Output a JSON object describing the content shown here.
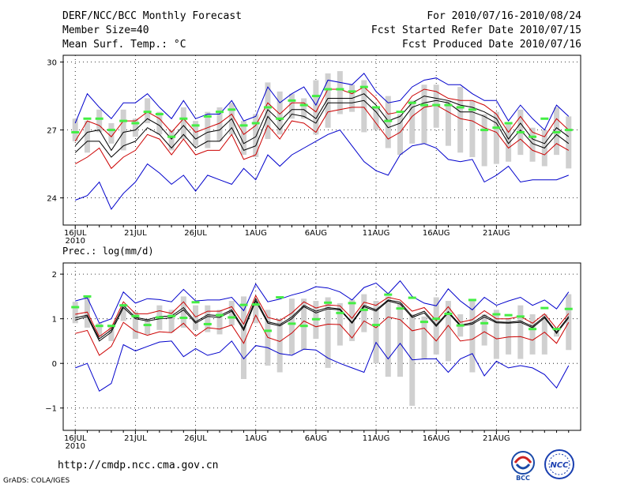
{
  "header": {
    "title": "DERF/NCC/BCC Monthly Forecast",
    "member_size": "Member Size=40",
    "variable": "Mean Surf. Temp.: °C",
    "forecast_period": "For 2010/07/16-2010/08/24",
    "start_date": "Fcst Started Refer Date 2010/07/15",
    "produced_date": "Fcst Produced Date 2010/07/16"
  },
  "footer": {
    "url": "http://cmdp.ncc.cma.gov.cn",
    "credit": "GrADS: COLA/IGES",
    "logo_bcc": "BCC",
    "logo_ncc": "NCC"
  },
  "colors": {
    "ens_range": "#0000cc",
    "spread": "#cc0000",
    "mean": "#000000",
    "box": "#d0d0d0",
    "marker": "#44ee44"
  },
  "chart_data": [
    {
      "type": "line",
      "title": "Mean Surf. Temp.: °C",
      "x_tick_labels": [
        "16JUL",
        "21JUL",
        "26JUL",
        "1AUG",
        "6AUG",
        "11AUG",
        "16AUG",
        "21AUG"
      ],
      "x_year_label": "2010",
      "ylim": [
        22.8,
        30.3
      ],
      "yticks": [
        24,
        27,
        30
      ],
      "ytick_labels": [
        "24",
        "27",
        "30"
      ],
      "grid": true,
      "series": [
        {
          "name": "max",
          "values": [
            27.3,
            28.6,
            28.0,
            27.5,
            28.2,
            28.2,
            28.6,
            28.0,
            27.5,
            28.3,
            27.5,
            27.7,
            27.7,
            28.3,
            27.4,
            27.6,
            28.9,
            28.2,
            28.6,
            28.9,
            28.1,
            29.2,
            29.1,
            29.0,
            29.5,
            28.7,
            28.2,
            28.3,
            28.9,
            29.2,
            29.3,
            29.0,
            29.0,
            28.6,
            28.3,
            28.3,
            27.4,
            28.1,
            27.5,
            27.0,
            28.1,
            27.6
          ]
        },
        {
          "name": "upper",
          "values": [
            26.5,
            27.4,
            27.2,
            26.7,
            27.4,
            27.4,
            27.8,
            27.5,
            26.9,
            27.5,
            26.9,
            27.1,
            27.3,
            27.7,
            26.8,
            27.2,
            28.2,
            27.7,
            28.2,
            28.2,
            27.8,
            28.8,
            28.8,
            28.6,
            28.9,
            28.4,
            27.7,
            27.8,
            28.5,
            28.8,
            28.7,
            28.4,
            28.3,
            28.3,
            28.1,
            27.7,
            26.9,
            27.6,
            26.9,
            26.7,
            27.5,
            27.0
          ]
        },
        {
          "name": "mean_high",
          "values": [
            26.3,
            26.9,
            27.0,
            26.1,
            26.9,
            27.0,
            27.5,
            27.2,
            26.6,
            27.2,
            26.6,
            26.9,
            27.0,
            27.5,
            26.4,
            26.7,
            27.9,
            27.4,
            27.9,
            27.9,
            27.5,
            28.4,
            28.4,
            28.4,
            28.6,
            28.1,
            27.4,
            27.6,
            28.2,
            28.5,
            28.4,
            28.3,
            28.1,
            28.0,
            27.8,
            27.5,
            26.6,
            27.3,
            26.6,
            26.4,
            27.1,
            26.7
          ]
        },
        {
          "name": "mean",
          "values": [
            26.0,
            26.5,
            26.5,
            25.8,
            26.3,
            26.5,
            27.1,
            26.8,
            26.2,
            26.8,
            26.2,
            26.5,
            26.5,
            27.1,
            26.1,
            26.3,
            27.6,
            27.0,
            27.7,
            27.6,
            27.3,
            28.2,
            28.2,
            28.2,
            28.3,
            27.8,
            27.1,
            27.3,
            28.0,
            28.2,
            28.3,
            28.2,
            27.8,
            27.8,
            27.6,
            27.3,
            26.4,
            27.0,
            26.4,
            26.2,
            26.8,
            26.4
          ]
        },
        {
          "name": "lower",
          "values": [
            25.5,
            25.8,
            26.2,
            25.3,
            25.8,
            26.1,
            26.8,
            26.6,
            25.9,
            26.6,
            25.9,
            26.1,
            26.1,
            26.8,
            25.7,
            25.9,
            27.2,
            26.6,
            27.4,
            27.3,
            26.9,
            27.8,
            27.9,
            28.0,
            28.0,
            27.3,
            26.6,
            26.9,
            27.6,
            28.0,
            28.1,
            27.8,
            27.5,
            27.4,
            27.1,
            26.9,
            26.2,
            26.6,
            26.1,
            25.9,
            26.4,
            26.1
          ]
        },
        {
          "name": "min",
          "values": [
            23.9,
            24.1,
            24.7,
            23.5,
            24.2,
            24.7,
            25.5,
            25.1,
            24.6,
            25.0,
            24.3,
            25.0,
            24.8,
            24.6,
            25.3,
            24.8,
            25.9,
            25.4,
            25.9,
            26.2,
            26.5,
            26.8,
            27.0,
            26.3,
            25.6,
            25.2,
            25.0,
            25.9,
            26.3,
            26.4,
            26.2,
            25.7,
            25.6,
            25.7,
            24.7,
            25.0,
            25.4,
            24.7,
            24.8,
            24.8,
            24.8,
            25.0
          ]
        },
        {
          "name": "box_top",
          "values": [
            27.5,
            27.4,
            27.9,
            27.3,
            27.9,
            27.5,
            28.4,
            27.8,
            27.0,
            28.0,
            27.4,
            27.8,
            28.0,
            28.2,
            27.4,
            27.7,
            29.1,
            28.7,
            28.6,
            28.4,
            29.2,
            29.5,
            29.6,
            29.0,
            29.2,
            28.0,
            28.5,
            27.7,
            28.3,
            29.0,
            29.0,
            28.3,
            28.9,
            28.3,
            27.7,
            27.8,
            27.3,
            27.9,
            27.1,
            27.0,
            28.0,
            27.6
          ]
        },
        {
          "name": "box_bottom",
          "values": [
            26.5,
            26.0,
            26.9,
            26.4,
            26.1,
            26.7,
            27.3,
            26.8,
            26.1,
            26.6,
            26.3,
            26.2,
            26.5,
            26.8,
            25.9,
            25.8,
            26.6,
            26.8,
            27.5,
            27.5,
            26.8,
            27.1,
            27.7,
            27.8,
            26.9,
            27.0,
            26.2,
            25.9,
            26.4,
            26.4,
            27.1,
            26.3,
            26.0,
            25.8,
            25.4,
            25.5,
            25.6,
            25.9,
            25.6,
            25.4,
            25.9,
            25.3
          ]
        },
        {
          "name": "marker",
          "values": [
            26.9,
            27.5,
            27.5,
            27.0,
            27.4,
            27.3,
            27.8,
            27.7,
            26.7,
            27.5,
            27.2,
            27.6,
            27.8,
            27.9,
            27.2,
            27.3,
            28.0,
            27.5,
            28.3,
            28.1,
            28.5,
            28.8,
            28.8,
            28.7,
            28.9,
            28.0,
            27.4,
            27.8,
            28.2,
            28.1,
            28.1,
            28.1,
            28.0,
            27.9,
            27.0,
            27.1,
            27.3,
            26.9,
            26.7,
            27.5,
            26.9,
            27.0
          ]
        }
      ]
    },
    {
      "type": "line",
      "title": "Prec.: log(mm/d)",
      "x_tick_labels": [
        "16JUL",
        "21JUL",
        "26JUL",
        "1AUG",
        "6AUG",
        "11AUG",
        "16AUG",
        "21AUG"
      ],
      "x_year_label": "2010",
      "ylim": [
        -1.5,
        2.25
      ],
      "yticks": [
        -1,
        0,
        1,
        2
      ],
      "ytick_labels": [
        "−1",
        "0",
        "1",
        "2"
      ],
      "grid": true,
      "series": [
        {
          "name": "max",
          "values": [
            1.4,
            1.47,
            0.9,
            1.0,
            1.6,
            1.35,
            1.45,
            1.43,
            1.38,
            1.66,
            1.4,
            1.42,
            1.42,
            1.48,
            1.18,
            1.78,
            1.38,
            1.44,
            1.53,
            1.6,
            1.72,
            1.69,
            1.6,
            1.42,
            1.7,
            1.8,
            1.56,
            1.85,
            1.5,
            1.35,
            1.29,
            1.67,
            1.4,
            1.2,
            1.48,
            1.3,
            1.4,
            1.48,
            1.3,
            1.42,
            1.22,
            1.6
          ]
        },
        {
          "name": "upper",
          "values": [
            1.1,
            1.15,
            0.6,
            0.8,
            1.38,
            1.11,
            1.11,
            1.18,
            1.12,
            1.38,
            1.04,
            1.17,
            1.17,
            1.27,
            0.88,
            1.52,
            1.03,
            0.96,
            1.13,
            1.38,
            1.24,
            1.31,
            1.29,
            1.01,
            1.37,
            1.3,
            1.48,
            1.42,
            1.17,
            1.25,
            0.96,
            1.27,
            0.92,
            0.98,
            1.18,
            1.0,
            1.0,
            1.05,
            0.9,
            1.11,
            0.78,
            1.12
          ]
        },
        {
          "name": "mean_high",
          "values": [
            1.02,
            1.08,
            0.55,
            0.75,
            1.3,
            1.03,
            0.98,
            1.05,
            1.06,
            1.25,
            0.93,
            1.09,
            1.07,
            1.2,
            0.78,
            1.45,
            0.93,
            0.87,
            1.04,
            1.3,
            1.17,
            1.25,
            1.22,
            0.92,
            1.3,
            1.2,
            1.42,
            1.37,
            1.06,
            1.17,
            0.86,
            1.16,
            0.86,
            0.91,
            1.08,
            0.93,
            0.92,
            0.95,
            0.83,
            1.05,
            0.7,
            1.05
          ]
        },
        {
          "name": "mean",
          "values": [
            0.97,
            1.05,
            0.5,
            0.7,
            1.25,
            1.0,
            0.95,
            1.0,
            1.02,
            1.2,
            0.9,
            1.05,
            1.03,
            1.17,
            0.74,
            1.4,
            0.9,
            0.84,
            1.0,
            1.27,
            1.13,
            1.22,
            1.2,
            0.9,
            1.27,
            1.17,
            1.4,
            1.33,
            1.03,
            1.13,
            0.83,
            1.13,
            0.84,
            0.88,
            1.04,
            0.91,
            0.9,
            0.92,
            0.8,
            1.02,
            0.67,
            1.02
          ]
        },
        {
          "name": "lower",
          "values": [
            0.67,
            0.74,
            0.18,
            0.38,
            0.92,
            0.72,
            0.63,
            0.71,
            0.69,
            0.9,
            0.61,
            0.8,
            0.77,
            0.86,
            0.45,
            1.08,
            0.58,
            0.49,
            0.68,
            0.95,
            0.82,
            0.88,
            0.87,
            0.57,
            0.95,
            0.8,
            1.04,
            0.98,
            0.73,
            0.79,
            0.5,
            0.85,
            0.5,
            0.54,
            0.71,
            0.55,
            0.59,
            0.6,
            0.52,
            0.7,
            0.45,
            0.92
          ]
        },
        {
          "name": "min",
          "values": [
            -0.1,
            0.0,
            -0.62,
            -0.45,
            0.42,
            0.28,
            0.38,
            0.48,
            0.5,
            0.15,
            0.33,
            0.18,
            0.25,
            0.5,
            0.1,
            0.4,
            0.35,
            0.22,
            0.18,
            0.32,
            0.3,
            0.12,
            0.0,
            -0.1,
            -0.2,
            0.47,
            0.1,
            0.45,
            0.08,
            0.1,
            0.1,
            -0.2,
            0.1,
            0.22,
            -0.28,
            0.05,
            -0.1,
            -0.05,
            -0.1,
            -0.25,
            -0.55,
            -0.05
          ]
        },
        {
          "name": "box_top",
          "values": [
            1.38,
            1.51,
            0.9,
            0.83,
            1.33,
            1.16,
            1.0,
            1.3,
            1.2,
            1.5,
            1.3,
            1.3,
            1.2,
            1.4,
            1.5,
            1.38,
            1.2,
            1.0,
            1.45,
            1.45,
            1.4,
            1.48,
            1.35,
            1.43,
            1.55,
            1.4,
            1.5,
            1.35,
            1.1,
            1.05,
            1.48,
            1.4,
            1.1,
            1.4,
            1.1,
            1.2,
            1.02,
            1.3,
            1.1,
            1.1,
            0.7,
            1.55
          ]
        },
        {
          "name": "box_bottom",
          "values": [
            0.9,
            0.8,
            0.6,
            0.5,
            0.95,
            0.55,
            0.65,
            0.75,
            0.7,
            0.8,
            0.75,
            0.7,
            0.65,
            0.85,
            -0.35,
            0.9,
            -0.05,
            -0.2,
            0.2,
            0.3,
            0.55,
            -0.1,
            0.4,
            0.5,
            0.7,
            0.0,
            -0.3,
            -0.3,
            -0.95,
            0.1,
            0.2,
            0.05,
            0.6,
            -0.2,
            0.4,
            0.1,
            0.2,
            0.1,
            0.2,
            0.2,
            0.6,
            0.3
          ]
        },
        {
          "name": "marker",
          "values": [
            1.26,
            1.5,
            0.84,
            0.84,
            1.3,
            1.06,
            0.86,
            1.03,
            1.06,
            1.02,
            1.37,
            0.88,
            1.08,
            1.03,
            1.31,
            1.32,
            0.73,
            1.48,
            0.89,
            0.84,
            0.99,
            1.36,
            1.13,
            1.35,
            1.2,
            0.86,
            1.54,
            1.23,
            1.47,
            0.93,
            1.0,
            1.11,
            0.85,
            1.42,
            0.9,
            1.1,
            1.08,
            1.05,
            0.77,
            1.24,
            0.77,
            1.22
          ]
        }
      ]
    }
  ]
}
